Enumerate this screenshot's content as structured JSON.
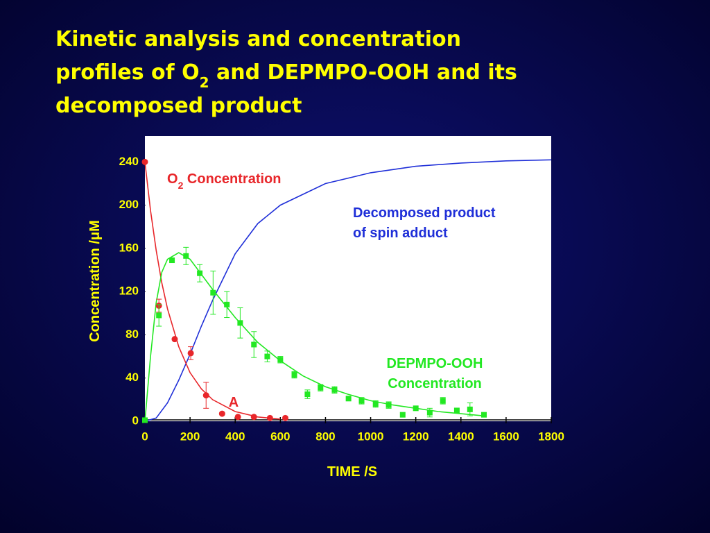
{
  "chart_data": {
    "type": "scatter",
    "title": [
      "Kinetic analysis  and concentration",
      "profiles of O",
      "2",
      " and  DEPMPO-OOH and its",
      "decomposed product"
    ],
    "x_label": "TIME /S",
    "y_label": "Concentration /μM",
    "xlim": [
      0,
      1800
    ],
    "ylim": [
      0,
      264
    ],
    "xticks": [
      0,
      200,
      400,
      600,
      800,
      1000,
      1200,
      1400,
      1600,
      1800
    ],
    "yticks": [
      0,
      40,
      80,
      120,
      160,
      200,
      240
    ],
    "series": [
      {
        "kind": "line",
        "color": "#1f2fd8",
        "x": [
          0,
          50,
          100,
          150,
          200,
          250,
          300,
          400,
          500,
          600,
          800,
          1000,
          1200,
          1400,
          1600,
          1800
        ],
        "values": [
          0,
          3,
          17,
          38,
          62,
          88,
          112,
          155,
          183,
          200,
          220,
          230,
          236,
          239,
          241,
          242
        ]
      },
      {
        "kind": "line",
        "color": "#e8262a",
        "x": [
          0,
          25,
          50,
          75,
          100,
          150,
          200,
          250,
          300,
          400,
          500,
          600
        ],
        "values": [
          240,
          195,
          158,
          128,
          104,
          69,
          45,
          30,
          20,
          9,
          4,
          2
        ]
      },
      {
        "kind": "line",
        "color": "#22e822",
        "x": [
          0,
          25,
          50,
          75,
          100,
          150,
          200,
          300,
          400,
          500,
          600,
          700,
          800,
          900,
          1000,
          1100,
          1200,
          1300,
          1400,
          1500
        ],
        "values": [
          0,
          60,
          110,
          138,
          150,
          156,
          150,
          122,
          96,
          73,
          56,
          42,
          32,
          25,
          19,
          15,
          12,
          9,
          7,
          5
        ]
      },
      {
        "kind": "points",
        "marker": "circle",
        "color": "#e8262a",
        "x": [
          0,
          62,
          132,
          203,
          271,
          342,
          412,
          483,
          554,
          622
        ],
        "values": [
          240,
          107,
          76,
          63,
          24,
          7,
          4,
          4,
          3,
          3
        ],
        "errors": [
          null,
          6,
          null,
          6,
          12,
          null,
          null,
          null,
          null,
          null
        ]
      },
      {
        "kind": "points",
        "marker": "square",
        "color": "#22e822",
        "x": [
          0,
          62,
          120,
          182,
          243,
          302,
          363,
          422,
          483,
          542,
          600,
          662,
          720,
          778,
          840,
          902,
          960,
          1022,
          1080,
          1142,
          1200,
          1262,
          1320,
          1382,
          1440,
          1502
        ],
        "values": [
          1,
          98,
          149,
          153,
          137,
          119,
          108,
          91,
          71,
          60,
          57,
          43,
          25,
          31,
          29,
          21,
          19,
          16,
          15,
          6,
          12,
          8,
          19,
          10,
          11,
          6
        ],
        "errors": [
          null,
          10,
          null,
          8,
          8,
          20,
          12,
          14,
          12,
          5,
          3,
          3,
          4,
          3,
          3,
          null,
          3,
          3,
          3,
          null,
          null,
          4,
          3,
          null,
          6,
          null
        ]
      }
    ],
    "annotations": [
      {
        "parts": [
          "O",
          "2",
          " Concentration"
        ],
        "color": "#e8262a"
      },
      {
        "lines": [
          "Decomposed product",
          "of spin adduct"
        ],
        "color": "#1f2fd8"
      },
      {
        "lines": [
          "DEPMPO-OOH",
          "Concentration"
        ],
        "color": "#22e822"
      },
      {
        "lines": [
          "A"
        ],
        "color": "#e8262a"
      }
    ]
  }
}
